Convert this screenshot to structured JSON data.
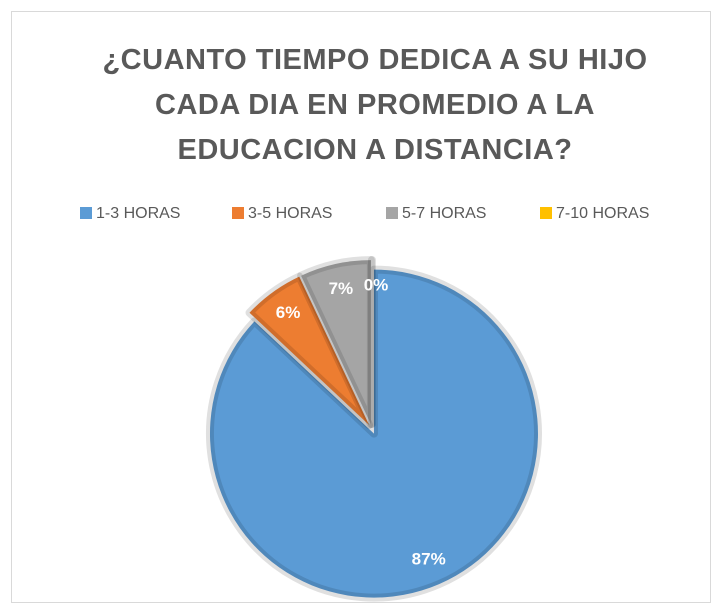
{
  "chart_data": {
    "type": "pie",
    "title": "¿CUANTO TIEMPO DEDICA A SU HIJO CADA DIA EN PROMEDIO A LA EDUCACION A DISTANCIA?",
    "categories": [
      "1-3 HORAS",
      "3-5 HORAS",
      "5-7 HORAS",
      "7-10 HORAS"
    ],
    "values": [
      87,
      6,
      7,
      0
    ],
    "value_labels": [
      "87%",
      "6%",
      "7%",
      "0%"
    ],
    "colors": [
      "#5b9bd5",
      "#ed7d31",
      "#a5a5a5",
      "#ffc000"
    ],
    "legend": "top"
  }
}
